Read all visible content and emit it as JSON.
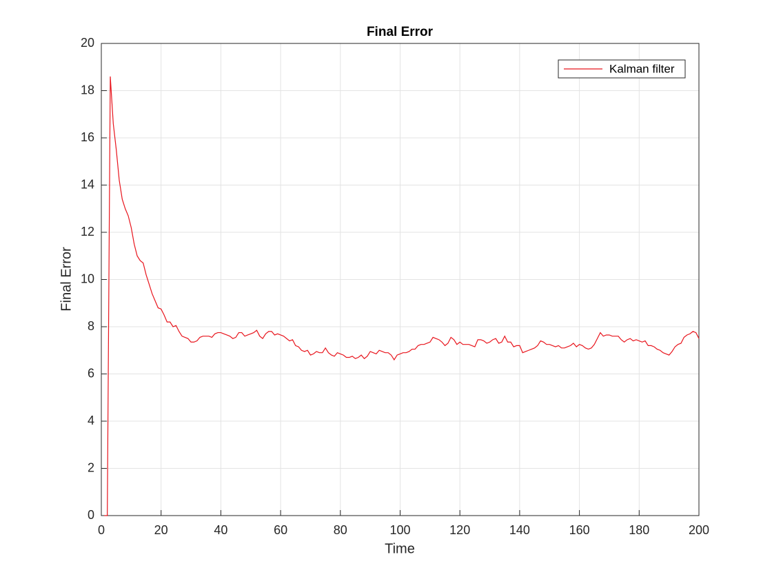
{
  "chart_data": {
    "type": "line",
    "title": "Final Error",
    "xlabel": "Time",
    "ylabel": "Final Error",
    "x": [
      1,
      2,
      3,
      4,
      5,
      6,
      7,
      8,
      9,
      10,
      11,
      12,
      13,
      14,
      15,
      16,
      17,
      18,
      19,
      20,
      21,
      22,
      23,
      24,
      25,
      26,
      27,
      28,
      29,
      30,
      31,
      32,
      33,
      34,
      35,
      36,
      37,
      38,
      39,
      40,
      41,
      42,
      43,
      44,
      45,
      46,
      47,
      48,
      49,
      50,
      51,
      52,
      53,
      54,
      55,
      56,
      57,
      58,
      59,
      60,
      61,
      62,
      63,
      64,
      65,
      66,
      67,
      68,
      69,
      70,
      71,
      72,
      73,
      74,
      75,
      76,
      77,
      78,
      79,
      80,
      81,
      82,
      83,
      84,
      85,
      86,
      87,
      88,
      89,
      90,
      91,
      92,
      93,
      94,
      95,
      96,
      97,
      98,
      99,
      100,
      101,
      102,
      103,
      104,
      105,
      106,
      107,
      108,
      109,
      110,
      111,
      112,
      113,
      114,
      115,
      116,
      117,
      118,
      119,
      120,
      121,
      122,
      123,
      124,
      125,
      126,
      127,
      128,
      129,
      130,
      131,
      132,
      133,
      134,
      135,
      136,
      137,
      138,
      139,
      140,
      141,
      142,
      143,
      144,
      145,
      146,
      147,
      148,
      149,
      150,
      151,
      152,
      153,
      154,
      155,
      156,
      157,
      158,
      159,
      160,
      161,
      162,
      163,
      164,
      165,
      166,
      167,
      168,
      169,
      170,
      171,
      172,
      173,
      174,
      175,
      176,
      177,
      178,
      179,
      180,
      181,
      182,
      183,
      184,
      185,
      186,
      187,
      188,
      189,
      190,
      191,
      192,
      193,
      194,
      195,
      196,
      197,
      198,
      199,
      200
    ],
    "series": [
      {
        "name": "Kalman filter",
        "color": "#e8141c",
        "values": [
          0,
          0,
          18.6,
          16.6,
          15.5,
          14.2,
          13.4,
          13.0,
          12.7,
          12.2,
          11.5,
          11.0,
          10.8,
          10.7,
          10.2,
          9.8,
          9.4,
          9.1,
          8.8,
          8.75,
          8.5,
          8.2,
          8.2,
          8.0,
          8.05,
          7.8,
          7.6,
          7.55,
          7.5,
          7.35,
          7.35,
          7.4,
          7.55,
          7.6,
          7.6,
          7.6,
          7.55,
          7.7,
          7.75,
          7.75,
          7.7,
          7.65,
          7.6,
          7.5,
          7.55,
          7.75,
          7.75,
          7.6,
          7.65,
          7.7,
          7.75,
          7.85,
          7.6,
          7.5,
          7.7,
          7.8,
          7.8,
          7.65,
          7.7,
          7.65,
          7.6,
          7.5,
          7.4,
          7.45,
          7.2,
          7.15,
          7.0,
          6.95,
          7.0,
          6.8,
          6.85,
          6.95,
          6.9,
          6.9,
          7.1,
          6.9,
          6.8,
          6.75,
          6.9,
          6.85,
          6.8,
          6.7,
          6.7,
          6.75,
          6.65,
          6.7,
          6.8,
          6.65,
          6.75,
          6.95,
          6.9,
          6.85,
          7.0,
          6.95,
          6.9,
          6.9,
          6.8,
          6.6,
          6.8,
          6.85,
          6.9,
          6.9,
          6.95,
          7.05,
          7.05,
          7.2,
          7.25,
          7.25,
          7.3,
          7.35,
          7.55,
          7.5,
          7.45,
          7.35,
          7.2,
          7.3,
          7.55,
          7.45,
          7.25,
          7.35,
          7.25,
          7.25,
          7.25,
          7.2,
          7.15,
          7.45,
          7.45,
          7.4,
          7.3,
          7.35,
          7.45,
          7.5,
          7.3,
          7.35,
          7.6,
          7.35,
          7.35,
          7.15,
          7.2,
          7.2,
          6.9,
          6.95,
          7.0,
          7.05,
          7.1,
          7.2,
          7.4,
          7.35,
          7.25,
          7.25,
          7.2,
          7.15,
          7.2,
          7.1,
          7.1,
          7.15,
          7.2,
          7.3,
          7.15,
          7.25,
          7.2,
          7.1,
          7.05,
          7.1,
          7.25,
          7.5,
          7.75,
          7.6,
          7.65,
          7.65,
          7.6,
          7.6,
          7.6,
          7.45,
          7.35,
          7.45,
          7.5,
          7.4,
          7.45,
          7.4,
          7.35,
          7.4,
          7.2,
          7.2,
          7.15,
          7.05,
          7.0,
          6.9,
          6.85,
          6.8,
          6.95,
          7.15,
          7.25,
          7.3,
          7.55,
          7.65,
          7.7,
          7.8,
          7.75,
          7.5
        ]
      }
    ],
    "xlim": [
      0,
      200
    ],
    "xticks": [
      0,
      20,
      40,
      60,
      80,
      100,
      120,
      140,
      160,
      180,
      200
    ],
    "ylim": [
      0,
      20
    ],
    "yticks": [
      0,
      2,
      4,
      6,
      8,
      10,
      12,
      14,
      16,
      18,
      20
    ],
    "grid": true,
    "legend": "top-right"
  }
}
